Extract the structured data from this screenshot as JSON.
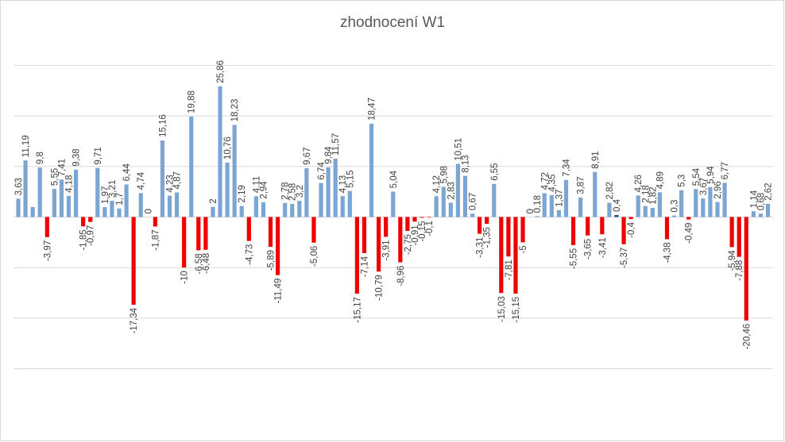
{
  "chart_data": {
    "type": "bar",
    "title": "zhodnocení W1",
    "xlabel": "",
    "ylabel": "",
    "ylim": [
      -30,
      30
    ],
    "gridlines_y": [
      -30,
      -20,
      -10,
      0,
      10,
      20,
      30
    ],
    "grid": true,
    "legend": "none",
    "colors": {
      "positive": "#7ba6d3",
      "negative": "#ee0000",
      "highlight": "#1f4e79",
      "grid": "#d9d9d9",
      "label": "#404040"
    },
    "values": [
      3.63,
      11.19,
      1.99,
      9.8,
      -3.97,
      5.55,
      7.41,
      4.18,
      9.38,
      -1.85,
      -0.97,
      9.71,
      1.97,
      3.21,
      1.7,
      6.44,
      -17.34,
      4.74,
      0,
      -1.87,
      15.16,
      4.23,
      4.87,
      -10,
      19.88,
      -6.58,
      -6.48,
      2,
      25.86,
      10.76,
      18.23,
      2.19,
      -4.73,
      4.11,
      2.94,
      -5.89,
      -11.49,
      2.78,
      2.58,
      3.2,
      9.67,
      -5.06,
      6.74,
      9.84,
      11.57,
      4.13,
      5.15,
      -15.17,
      -7.14,
      18.47,
      -10.79,
      -3.91,
      5.04,
      -8.96,
      -2.75,
      -0.91,
      -0.15,
      -0.1,
      4.12,
      5.98,
      2.83,
      10.51,
      8.13,
      0.67,
      -3.31,
      -1.35,
      6.55,
      -15.03,
      -7.81,
      -15.15,
      -5,
      0,
      0.18,
      4.72,
      4.35,
      1.37,
      7.34,
      -5.55,
      3.87,
      -3.65,
      8.91,
      -3.41,
      2.82,
      0.4,
      -5.37,
      -0.4,
      4.26,
      2.18,
      1.82,
      4.89,
      -4.38,
      0.3,
      5.3,
      -0.49,
      5.54,
      3.67,
      5.94,
      2.96,
      6.77,
      -5.94,
      -7.88,
      -20.46,
      1.14,
      0.68,
      2.62
    ],
    "labels": [
      "3,63",
      "11,19",
      "1,99",
      "9,8",
      "-3,97",
      "5,55",
      "7,41",
      "4,18",
      "9,38",
      "-1,85",
      "-0,97",
      "9,71",
      "1,97",
      "3,21",
      "1,7",
      "6,44",
      "-17,34",
      "4,74",
      "0",
      "-1,87",
      "15,16",
      "4,23",
      "4,87",
      "-10",
      "19,88",
      "-6,58",
      "-6,48",
      "2",
      "25,86",
      "10,76",
      "18,23",
      "2,19",
      "-4,73",
      "4,11",
      "2,94",
      "-5,89",
      "-11,49",
      "2,78",
      "2,58",
      "3,2",
      "9,67",
      "-5,06",
      "6,74",
      "9,84",
      "11,57",
      "4,13",
      "5,15",
      "-15,17",
      "-7,14",
      "18,47",
      "-10,79",
      "-3,91",
      "5,04",
      "-8,96",
      "-2,75",
      "-0,91",
      "-0,15",
      "-0,1",
      "4,12",
      "5,98",
      "2,83",
      "10,51",
      "8,13",
      "0,67",
      "-3,31",
      "-1,35",
      "6,55",
      "-15,03",
      "-7,81",
      "-15,15",
      "-5",
      "0",
      "0,18",
      "4,72",
      "4,35",
      "1,37",
      "7,34",
      "-5,55",
      "3,87",
      "-3,65",
      "8,91",
      "-3,41",
      "2,82",
      "0,4",
      "-5,37",
      "-0,4",
      "4,26",
      "2,18",
      "1,82",
      "4,89",
      "-4,38",
      "0,3",
      "5,3",
      "-0,49",
      "5,54",
      "3,67",
      "5,94",
      "2,96",
      "6,77",
      "-5,94",
      "-7,88",
      "-20,46",
      "1,14",
      "0,68",
      "2,62"
    ],
    "show_labels": [
      true,
      true,
      false,
      true,
      true,
      true,
      true,
      true,
      true,
      true,
      true,
      true,
      true,
      true,
      true,
      true,
      true,
      true,
      true,
      true,
      true,
      true,
      true,
      true,
      true,
      true,
      true,
      true,
      true,
      true,
      true,
      true,
      true,
      true,
      true,
      true,
      true,
      true,
      true,
      true,
      true,
      true,
      true,
      true,
      true,
      true,
      true,
      true,
      true,
      true,
      true,
      true,
      true,
      true,
      true,
      true,
      true,
      true,
      true,
      true,
      true,
      true,
      true,
      true,
      true,
      true,
      true,
      true,
      true,
      true,
      true,
      true,
      true,
      true,
      true,
      true,
      true,
      true,
      true,
      true,
      true,
      true,
      true,
      true,
      true,
      true,
      true,
      true,
      true,
      true,
      true,
      true,
      true,
      true,
      true,
      true,
      true,
      true,
      true,
      true,
      true,
      true,
      true,
      true,
      true
    ],
    "highlight_index": 83
  }
}
